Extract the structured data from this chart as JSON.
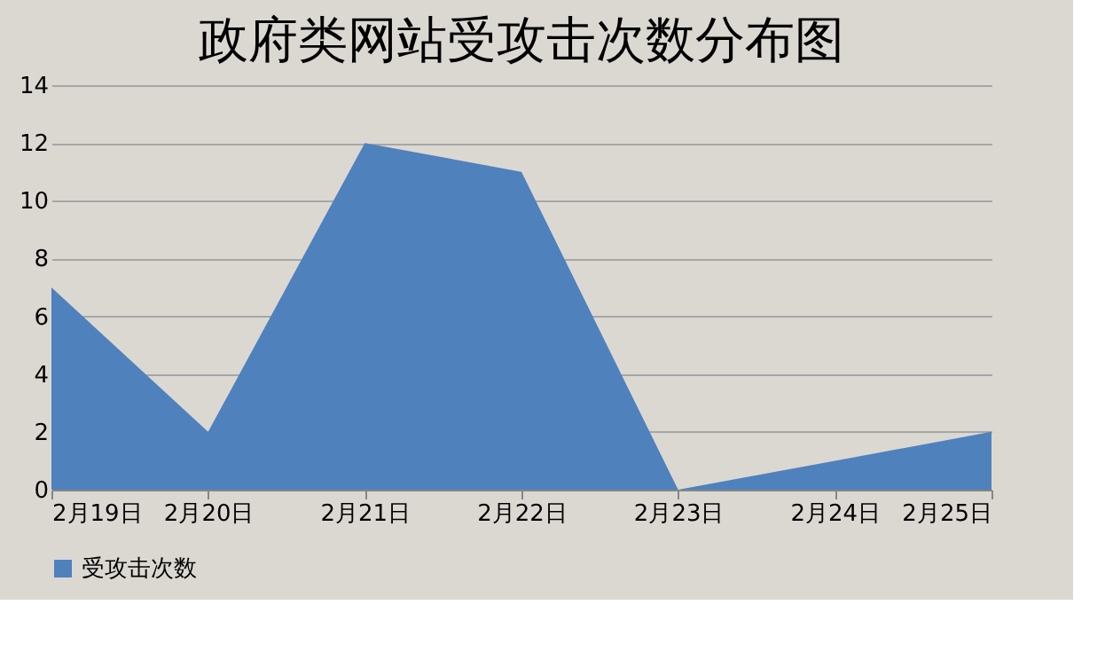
{
  "chart_data": {
    "type": "area",
    "title": "政府类网站受攻击次数分布图",
    "categories": [
      "2月19日",
      "2月20日",
      "2月21日",
      "2月22日",
      "2月23日",
      "2月24日",
      "2月25日"
    ],
    "series": [
      {
        "name": "受攻击次数",
        "color": "#4f81bd",
        "values": [
          7,
          2,
          12,
          11,
          0,
          1,
          2
        ]
      }
    ],
    "ylim": [
      0,
      14
    ],
    "yticks": [
      0,
      2,
      4,
      6,
      8,
      10,
      12,
      14
    ],
    "grid": "y",
    "legend": "bottom"
  }
}
